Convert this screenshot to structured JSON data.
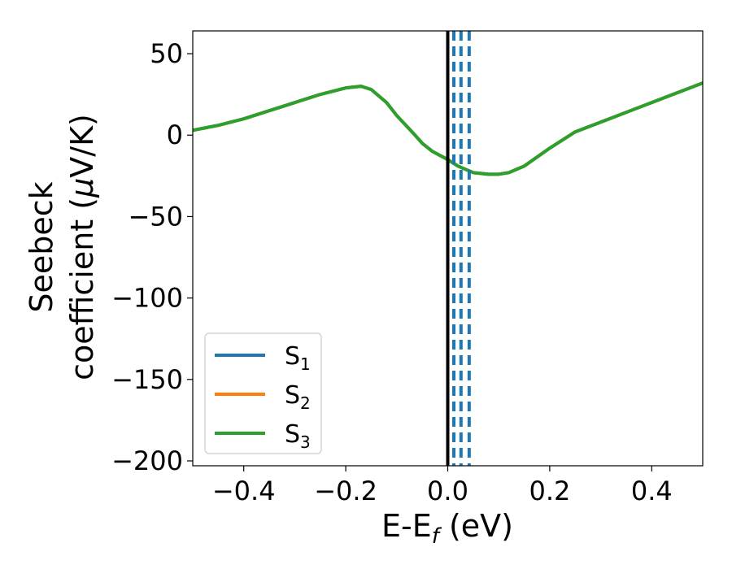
{
  "chart_data": {
    "type": "line",
    "xlabel": {
      "base": "E-E",
      "sub": "f",
      "suffix": " (eV)"
    },
    "ylabel": {
      "line1": "Seebeck",
      "line2_pre": "coefficient  (",
      "line2_mu": "μ",
      "line2_post": "V/K)"
    },
    "xlim": [
      -0.5,
      0.5
    ],
    "ylim": [
      -203,
      64
    ],
    "x_ticks": [
      -0.4,
      -0.2,
      0.0,
      0.2,
      0.4
    ],
    "x_tick_labels": [
      "−0.4",
      "−0.2",
      "0.0",
      "0.2",
      "0.4"
    ],
    "y_ticks": [
      50,
      0,
      -50,
      -100,
      -150,
      -200
    ],
    "y_tick_labels": [
      "50",
      "0",
      "−50",
      "−100",
      "−150",
      "−200"
    ],
    "grid": false,
    "legend_position": "lower-left",
    "series": [
      {
        "name": "S",
        "sub": "1",
        "color": "#1f77b4",
        "x": [
          -0.5,
          -0.45,
          -0.4,
          -0.35,
          -0.3,
          -0.25,
          -0.2,
          -0.17,
          -0.15,
          -0.12,
          -0.1,
          -0.07,
          -0.05,
          -0.03,
          0.0,
          0.02,
          0.05,
          0.08,
          0.1,
          0.12,
          0.15,
          0.2,
          0.25,
          0.3,
          0.35,
          0.4,
          0.45,
          0.5
        ],
        "y": [
          3,
          6,
          10,
          15,
          20,
          25,
          29,
          30,
          28,
          20,
          12,
          2,
          -5,
          -10,
          -15,
          -19,
          -23,
          -24,
          -24,
          -23,
          -19,
          -8,
          2,
          8,
          14,
          20,
          26,
          32
        ]
      },
      {
        "name": "S",
        "sub": "2",
        "color": "#ff7f0e",
        "x": [
          -0.5,
          -0.45,
          -0.4,
          -0.35,
          -0.3,
          -0.25,
          -0.2,
          -0.17,
          -0.15,
          -0.12,
          -0.1,
          -0.07,
          -0.05,
          -0.03,
          0.0,
          0.02,
          0.05,
          0.08,
          0.1,
          0.12,
          0.15,
          0.2,
          0.25,
          0.3,
          0.35,
          0.4,
          0.45,
          0.5
        ],
        "y": [
          3,
          6,
          10,
          15,
          20,
          25,
          29,
          30,
          28,
          20,
          12,
          2,
          -5,
          -10,
          -15,
          -19,
          -23,
          -24,
          -24,
          -23,
          -19,
          -8,
          2,
          8,
          14,
          20,
          26,
          32
        ]
      },
      {
        "name": "S",
        "sub": "3",
        "color": "#2ca02c",
        "x": [
          -0.5,
          -0.45,
          -0.4,
          -0.35,
          -0.3,
          -0.25,
          -0.2,
          -0.17,
          -0.15,
          -0.12,
          -0.1,
          -0.07,
          -0.05,
          -0.03,
          0.0,
          0.02,
          0.05,
          0.08,
          0.1,
          0.12,
          0.15,
          0.2,
          0.25,
          0.3,
          0.35,
          0.4,
          0.45,
          0.5
        ],
        "y": [
          3,
          6,
          10,
          15,
          20,
          25,
          29,
          30,
          28,
          20,
          12,
          2,
          -5,
          -10,
          -15,
          -19,
          -23,
          -24,
          -24,
          -23,
          -19,
          -8,
          2,
          8,
          14,
          20,
          26,
          32
        ]
      }
    ],
    "reference_lines": {
      "solid": {
        "x": 0.0,
        "color": "#000000"
      },
      "dashed": {
        "x": [
          0.012,
          0.026,
          0.042
        ],
        "color": "#1f77b4"
      }
    }
  }
}
